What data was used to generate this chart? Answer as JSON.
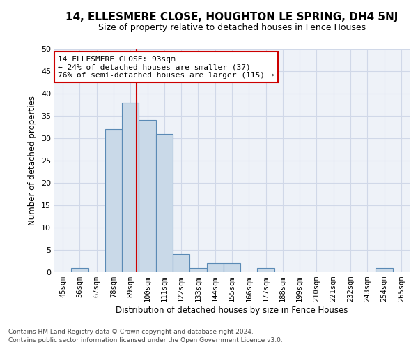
{
  "title": "14, ELLESMERE CLOSE, HOUGHTON LE SPRING, DH4 5NJ",
  "subtitle": "Size of property relative to detached houses in Fence Houses",
  "xlabel": "Distribution of detached houses by size in Fence Houses",
  "ylabel": "Number of detached properties",
  "bin_labels": [
    "45sqm",
    "56sqm",
    "67sqm",
    "78sqm",
    "89sqm",
    "100sqm",
    "111sqm",
    "122sqm",
    "133sqm",
    "144sqm",
    "155sqm",
    "166sqm",
    "177sqm",
    "188sqm",
    "199sqm",
    "210sqm",
    "221sqm",
    "232sqm",
    "243sqm",
    "254sqm",
    "265sqm"
  ],
  "bar_values": [
    0,
    1,
    0,
    32,
    38,
    34,
    31,
    4,
    1,
    2,
    2,
    0,
    1,
    0,
    0,
    0,
    0,
    0,
    0,
    1,
    0
  ],
  "bar_color": "#c9d9e8",
  "bar_edge_color": "#5a8ab5",
  "ylim": [
    0,
    50
  ],
  "yticks": [
    0,
    5,
    10,
    15,
    20,
    25,
    30,
    35,
    40,
    45,
    50
  ],
  "property_label": "14 ELLESMERE CLOSE: 93sqm",
  "annotation_line1": "← 24% of detached houses are smaller (37)",
  "annotation_line2": "76% of semi-detached houses are larger (115) →",
  "vline_color": "#cc0000",
  "annotation_box_color": "#ffffff",
  "annotation_box_edge": "#cc0000",
  "footnote1": "Contains HM Land Registry data © Crown copyright and database right 2024.",
  "footnote2": "Contains public sector information licensed under the Open Government Licence v3.0.",
  "grid_color": "#d0d8e8",
  "background_color": "#eef2f8",
  "title_fontsize": 11,
  "subtitle_fontsize": 9
}
